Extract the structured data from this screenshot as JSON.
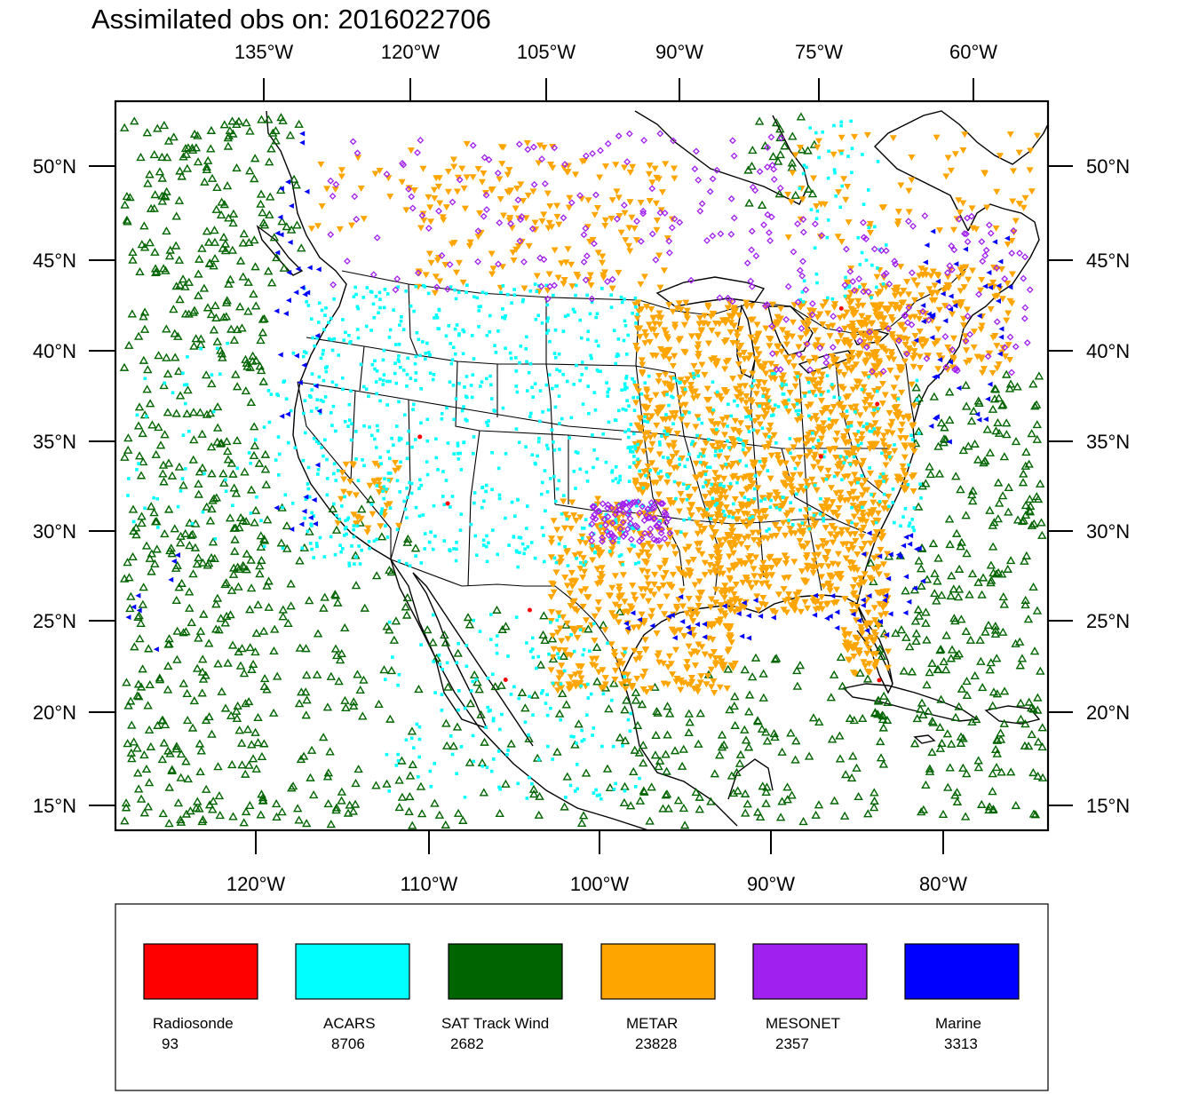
{
  "title": "Assimilated obs on: 2016022706",
  "axes": {
    "top_lon_labels": [
      "135°W",
      "120°W",
      "105°W",
      "90°W",
      "75°W",
      "60°W"
    ],
    "bottom_lon_labels": [
      "120°W",
      "110°W",
      "100°W",
      "90°W",
      "80°W"
    ],
    "left_lat_labels": [
      "50°N",
      "45°N",
      "40°N",
      "35°N",
      "30°N",
      "25°N",
      "20°N",
      "15°N"
    ],
    "right_lat_labels": [
      "50°N",
      "45°N",
      "40°N",
      "35°N",
      "30°N",
      "25°N",
      "20°N",
      "15°N"
    ]
  },
  "legend": {
    "items": [
      {
        "label": "Radiosonde",
        "count": "93",
        "color": "#ff0000"
      },
      {
        "label": "ACARS",
        "count": "8706",
        "color": "#00ffff"
      },
      {
        "label": "SAT Track Wind",
        "count": "2682",
        "color": "#006400"
      },
      {
        "label": "METAR",
        "count": "23828",
        "color": "#ffa500"
      },
      {
        "label": "MESONET",
        "count": "2357",
        "color": "#a020f0"
      },
      {
        "label": "Marine",
        "count": "3313",
        "color": "#0000ff"
      }
    ]
  },
  "chart_data": {
    "type": "scatter",
    "title": "Assimilated obs on: 2016022706",
    "projection": "Lambert conformal",
    "lat_range": [
      14,
      52
    ],
    "lon_range": [
      -128,
      -74
    ],
    "series": [
      {
        "name": "Radiosonde",
        "count": 93,
        "marker": "circle",
        "color": "#ff0000"
      },
      {
        "name": "ACARS",
        "count": 8706,
        "marker": "square",
        "color": "#00ffff"
      },
      {
        "name": "SAT Track Wind",
        "count": 2682,
        "marker": "triangle-up-open",
        "color": "#006400"
      },
      {
        "name": "METAR",
        "count": 23828,
        "marker": "triangle-down",
        "color": "#ffa500"
      },
      {
        "name": "MESONET",
        "count": 2357,
        "marker": "diamond",
        "color": "#a020f0"
      },
      {
        "name": "Marine",
        "count": 3313,
        "marker": "triangle-left",
        "color": "#0000ff"
      }
    ]
  }
}
